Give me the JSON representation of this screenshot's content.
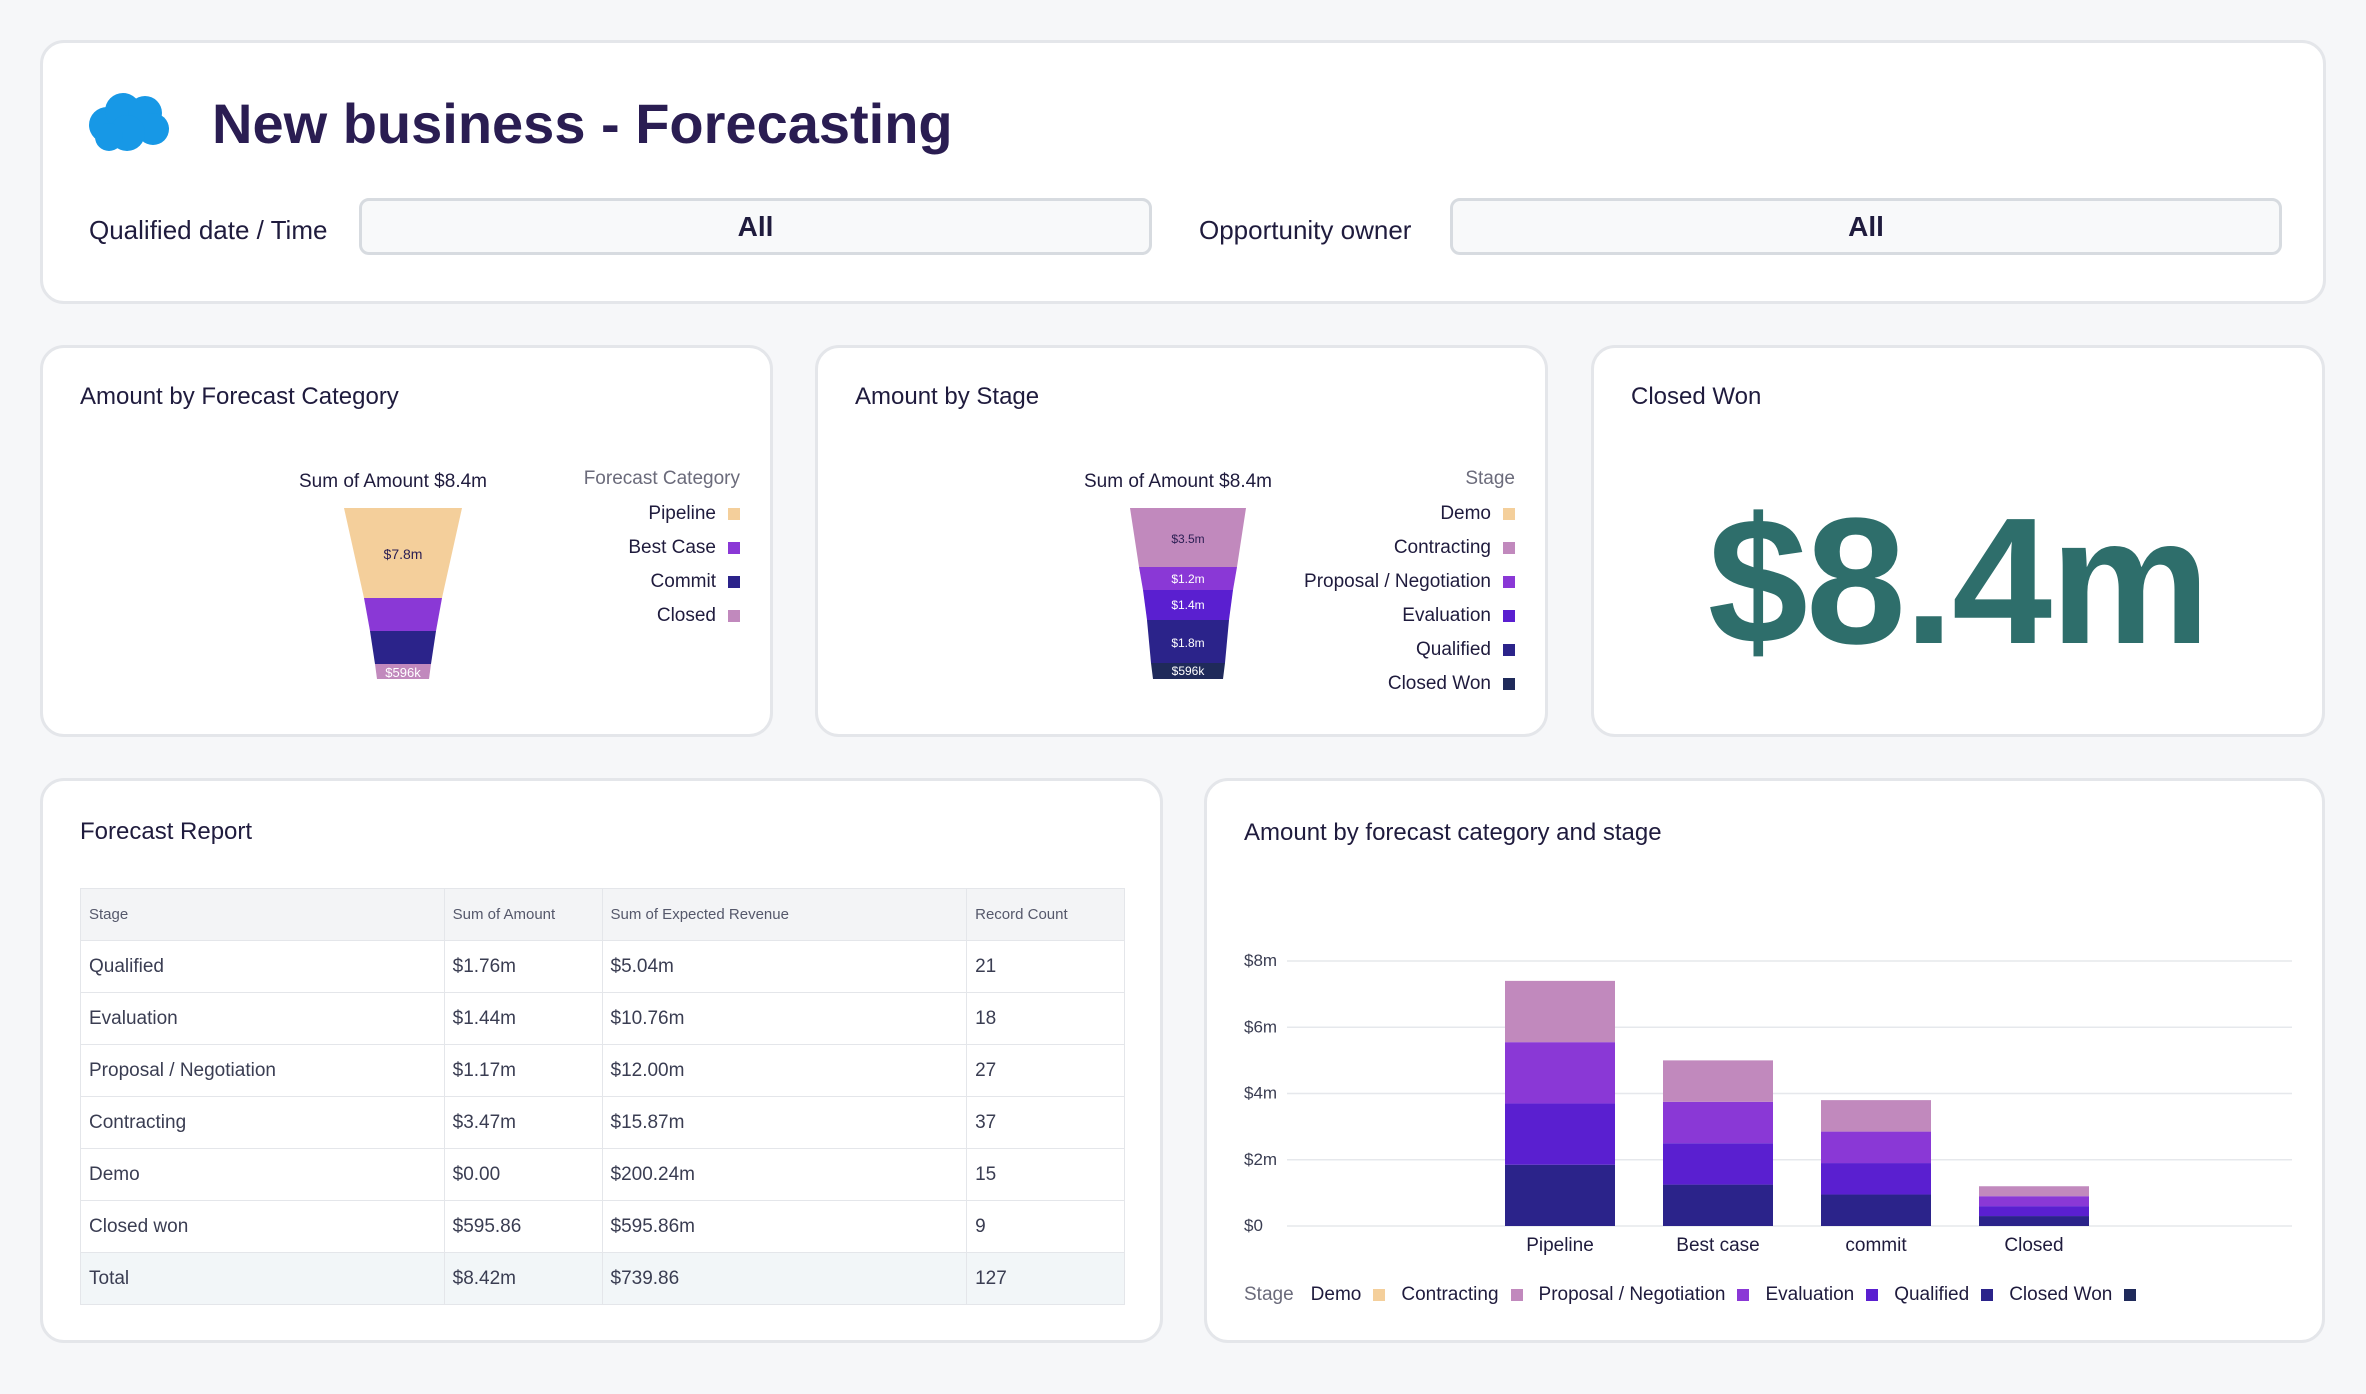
{
  "header": {
    "title": "New business - Forecasting",
    "logo": "salesforce-cloud-icon",
    "filters": [
      {
        "label": "Qualified date / Time",
        "value": "All"
      },
      {
        "label": "Opportunity owner",
        "value": "All"
      }
    ]
  },
  "colors": {
    "pipeline": "#f4cf9b",
    "best_case": "#8a38d6",
    "commit": "#2b238a",
    "closed": "#c189bd",
    "demo": "#f4cf9b",
    "contracting": "#c189bd",
    "proposal": "#8a38d6",
    "evaluation": "#5a1fd0",
    "qualified": "#2b238a",
    "closed_won": "#1f2a5a",
    "kpi": "#2e6e6b"
  },
  "forecast_card": {
    "title": "Amount by Forecast Category",
    "sum_label": "Sum of Amount $8.4m",
    "legend_title": "Forecast Category",
    "legend": [
      "Pipeline",
      "Best Case",
      "Commit",
      "Closed"
    ],
    "segment_labels": [
      "$7.8m",
      "",
      "",
      "$596k"
    ]
  },
  "stage_card": {
    "title": "Amount by Stage",
    "sum_label": "Sum of Amount $8.4m",
    "legend_title": "Stage",
    "legend": [
      "Demo",
      "Contracting",
      "Proposal / Negotiation",
      "Evaluation",
      "Qualified",
      "Closed Won"
    ],
    "segment_labels": [
      "$3.5m",
      "$1.2m",
      "$1.4m",
      "$1.8m",
      "$596k"
    ]
  },
  "closed_card": {
    "title": "Closed Won",
    "value": "$8.4m"
  },
  "report": {
    "title": "Forecast Report",
    "columns": [
      "Stage",
      "Sum of Amount",
      "Sum of Expected Revenue",
      "Record Count"
    ],
    "rows": [
      [
        "Qualified",
        "$1.76m",
        "$5.04m",
        "21"
      ],
      [
        "Evaluation",
        "$1.44m",
        "$10.76m",
        "18"
      ],
      [
        "Proposal / Negotiation",
        "$1.17m",
        "$12.00m",
        "27"
      ],
      [
        "Contracting",
        "$3.47m",
        "$15.87m",
        "37"
      ],
      [
        "Demo",
        "$0.00",
        "$200.24m",
        "15"
      ],
      [
        "Closed won",
        "$595.86",
        "$595.86m",
        "9"
      ]
    ],
    "total": [
      "Total",
      "$8.42m",
      "$739.86",
      "127"
    ]
  },
  "bar_card": {
    "title": "Amount by forecast category and stage",
    "legend_title": "Stage",
    "legend": [
      "Demo",
      "Contracting",
      "Proposal / Negotiation",
      "Evaluation",
      "Qualified",
      "Closed Won"
    ]
  },
  "chart_data": {
    "type": "bar",
    "stacked": true,
    "categories": [
      "Pipeline",
      "Best case",
      "commit",
      "Closed"
    ],
    "series": [
      {
        "name": "Closed Won",
        "values": [
          1.85,
          1.25,
          0.95,
          0.3
        ]
      },
      {
        "name": "Qualified",
        "values": [
          1.85,
          1.25,
          0.95,
          0.3
        ]
      },
      {
        "name": "Evaluation",
        "values": [
          1.85,
          1.25,
          0.95,
          0.3
        ]
      },
      {
        "name": "Contracting",
        "values": [
          1.85,
          1.25,
          0.95,
          0.3
        ]
      }
    ],
    "y_ticks": [
      "$0",
      "$2m",
      "$4m",
      "$6m",
      "$8m"
    ],
    "ylim": [
      0,
      8
    ],
    "grid": true,
    "legend_position": "bottom"
  }
}
